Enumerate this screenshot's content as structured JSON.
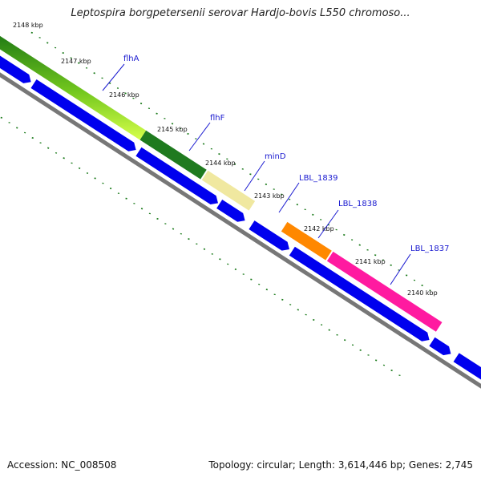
{
  "title": "Leptospira borgpetersenii serovar Hardjo-bovis L550 chromoso...",
  "footer": {
    "accession": "Accession: NC_008508",
    "topology": "Topology: circular; Length: 3,614,446 bp; Genes: 2,745"
  },
  "ticks": [
    "2148 kbp",
    "2147 kbp",
    "2146 kbp",
    "2145 kbp",
    "2144 kbp",
    "2143 kbp",
    "2142 kbp",
    "2141 kbp",
    "2140 kbp"
  ],
  "genes": [
    {
      "name": "flhA",
      "color": "#2d8a1e"
    },
    {
      "name": "flhF",
      "color": "#1f7a1f"
    },
    {
      "name": "minD",
      "color": "#f0e8a0"
    },
    {
      "name": "LBL_1839",
      "color": "#ffffff"
    },
    {
      "name": "LBL_1838",
      "color": "#ff8800"
    },
    {
      "name": "LBL_1837",
      "color": "#ff1aa0"
    }
  ],
  "colors": {
    "cds_track": "#0000ee",
    "backbone": "#777777",
    "gc_dots": "#1a7a1a",
    "label_line": "#1a1ad0"
  }
}
